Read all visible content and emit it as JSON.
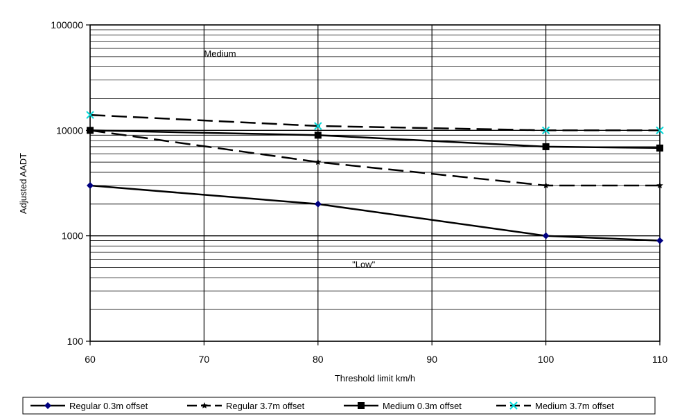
{
  "chart_data": {
    "type": "line",
    "title": "",
    "xlabel": "Threshold limit km/h",
    "ylabel": "Adjusted AADT",
    "xlim": [
      60,
      110
    ],
    "ylim": [
      100,
      100000
    ],
    "yscale": "log",
    "x_ticks": [
      "60",
      "70",
      "80",
      "90",
      "100",
      "110"
    ],
    "y_ticks": [
      "100",
      "1000",
      "10000",
      "100000"
    ],
    "grid": true,
    "legend_position": "bottom",
    "annotations": [
      {
        "text": "Medium",
        "x": 70,
        "y": 50000
      },
      {
        "text": "\"Low\"",
        "x": 83,
        "y": 500
      }
    ],
    "series": [
      {
        "name": "Regular 0.3m offset",
        "color": "#000000",
        "marker_color": "#000080",
        "marker": "diamond",
        "dash": "solid",
        "x": [
          60,
          80,
          100,
          110
        ],
        "y": [
          3000,
          2000,
          1000,
          900
        ]
      },
      {
        "name": "Regular 3.7m offset",
        "color": "#000000",
        "marker_color": "#000000",
        "marker": "star",
        "dash": "dashed",
        "x": [
          60,
          80,
          100,
          110
        ],
        "y": [
          10000,
          5000,
          3000,
          3000
        ]
      },
      {
        "name": "Medium 0.3m offset",
        "color": "#000000",
        "marker_color": "#000000",
        "marker": "square",
        "dash": "solid",
        "x": [
          60,
          80,
          100,
          110
        ],
        "y": [
          10000,
          9000,
          7000,
          6800
        ]
      },
      {
        "name": "Medium 3.7m offset",
        "color": "#000000",
        "marker_color": "#00d8d8",
        "marker": "x",
        "dash": "dashed",
        "x": [
          60,
          80,
          100,
          110
        ],
        "y": [
          14000,
          11000,
          10000,
          10000
        ]
      }
    ]
  }
}
